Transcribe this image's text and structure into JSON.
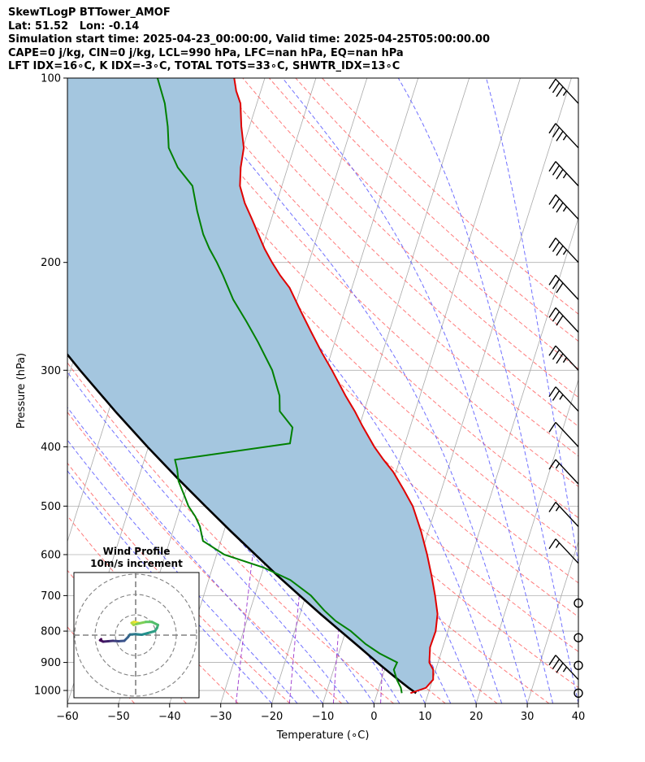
{
  "header": {
    "line1": "SkewTLogP BTTower_AMOF",
    "line2": "Lat: 51.52   Lon: -0.14",
    "line3": "Simulation start time: 2025-04-23_00:00:00, Valid time: 2025-04-25T05:00:00.00",
    "line4": "CAPE=0 j/kg, CIN=0 j/kg, LCL=990 hPa, LFC=nan hPa, EQ=nan hPa",
    "line5": "LFT IDX=16∘C, K IDX=-3∘C, TOTAL TOTS=33∘C, SHWTR_IDX=13∘C"
  },
  "chart_data": [
    {
      "type": "line",
      "subtype": "skew-t log-p",
      "xlabel": "Temperature (∘C)",
      "ylabel": "Pressure (hPa)",
      "xlim": [
        -60,
        40
      ],
      "ylim": [
        1050,
        100
      ],
      "y_scale": "log",
      "grid": true,
      "x_ticks": [
        -60,
        -50,
        -40,
        -30,
        -20,
        -10,
        0,
        10,
        20,
        30,
        40
      ],
      "y_ticks": [
        100,
        200,
        300,
        400,
        500,
        600,
        700,
        800,
        900,
        1000
      ],
      "colors": {
        "temperature": "#e00000",
        "dewpoint": "#008000",
        "parcel": "#000000",
        "cape_cin_fill": "#a4c6df",
        "dry_adiabats": "#ff5a5a",
        "moist_adiabats": "#4c4cff",
        "mixing_ratio": "#9932cc",
        "isotherms": "#a9a9a9"
      },
      "series": [
        {
          "key": "temperature",
          "points": [
            [
              1010,
              6.5
            ],
            [
              990,
              9.2
            ],
            [
              960,
              10.1
            ],
            [
              925,
              9.5
            ],
            [
              900,
              8.3
            ],
            [
              850,
              7.5
            ],
            [
              800,
              7.6
            ],
            [
              750,
              6.9
            ],
            [
              700,
              5.3
            ],
            [
              650,
              3.4
            ],
            [
              600,
              1.2
            ],
            [
              550,
              -1.4
            ],
            [
              500,
              -4.6
            ],
            [
              470,
              -7.4
            ],
            [
              440,
              -10.5
            ],
            [
              420,
              -13.2
            ],
            [
              400,
              -15.8
            ],
            [
              370,
              -19.4
            ],
            [
              350,
              -21.8
            ],
            [
              330,
              -24.6
            ],
            [
              300,
              -28.8
            ],
            [
              280,
              -32.0
            ],
            [
              260,
              -35.2
            ],
            [
              240,
              -38.6
            ],
            [
              220,
              -42.2
            ],
            [
              210,
              -44.8
            ],
            [
              200,
              -47.2
            ],
            [
              190,
              -49.5
            ],
            [
              180,
              -51.6
            ],
            [
              170,
              -53.8
            ],
            [
              160,
              -56.2
            ],
            [
              150,
              -58.2
            ],
            [
              140,
              -59.2
            ],
            [
              130,
              -59.8
            ],
            [
              120,
              -61.6
            ],
            [
              110,
              -63.2
            ],
            [
              105,
              -64.8
            ],
            [
              100,
              -66.0
            ]
          ]
        },
        {
          "key": "dewpoint",
          "points": [
            [
              1010,
              4.8
            ],
            [
              990,
              4.3
            ],
            [
              960,
              3.0
            ],
            [
              925,
              1.8
            ],
            [
              900,
              2.0
            ],
            [
              870,
              -2.0
            ],
            [
              840,
              -5.3
            ],
            [
              800,
              -9.0
            ],
            [
              770,
              -12.6
            ],
            [
              740,
              -15.5
            ],
            [
              700,
              -19.0
            ],
            [
              660,
              -24.0
            ],
            [
              630,
              -30.0
            ],
            [
              600,
              -38.5
            ],
            [
              570,
              -43.5
            ],
            [
              540,
              -45.0
            ],
            [
              520,
              -46.5
            ],
            [
              500,
              -48.5
            ],
            [
              480,
              -50.0
            ],
            [
              455,
              -52.0
            ],
            [
              435,
              -53.0
            ],
            [
              420,
              -54.0
            ],
            [
              395,
              -32.5
            ],
            [
              372,
              -33.0
            ],
            [
              350,
              -36.5
            ],
            [
              330,
              -37.5
            ],
            [
              300,
              -40.5
            ],
            [
              270,
              -45.0
            ],
            [
              250,
              -48.5
            ],
            [
              230,
              -52.5
            ],
            [
              210,
              -56.0
            ],
            [
              200,
              -58.0
            ],
            [
              190,
              -60.3
            ],
            [
              180,
              -62.4
            ],
            [
              165,
              -65.0
            ],
            [
              150,
              -67.5
            ],
            [
              140,
              -71.5
            ],
            [
              130,
              -74.5
            ],
            [
              120,
              -76.0
            ],
            [
              110,
              -78.0
            ],
            [
              100,
              -81.0
            ]
          ]
        },
        {
          "key": "parcel",
          "points": [
            [
              1010,
              7.6
            ],
            [
              1000,
              6.7
            ],
            [
              990,
              5.8
            ],
            [
              950,
              2.4
            ],
            [
              900,
              -1.9
            ],
            [
              850,
              -6.3
            ],
            [
              800,
              -11.0
            ],
            [
              750,
              -16.0
            ],
            [
              700,
              -21.2
            ],
            [
              650,
              -26.7
            ],
            [
              600,
              -32.4
            ],
            [
              550,
              -38.6
            ],
            [
              500,
              -45.2
            ],
            [
              450,
              -52.4
            ],
            [
              400,
              -60.2
            ],
            [
              350,
              -68.7
            ],
            [
              300,
              -78.1
            ],
            [
              250,
              -88.8
            ],
            [
              200,
              -101.3
            ],
            [
              150,
              -116.5
            ],
            [
              120,
              -127.6
            ],
            [
              100,
              -136.7
            ]
          ]
        }
      ],
      "wind_barbs": [
        {
          "p": 110,
          "speed_kt": 25
        },
        {
          "p": 130,
          "speed_kt": 25
        },
        {
          "p": 150,
          "speed_kt": 25
        },
        {
          "p": 170,
          "speed_kt": 25
        },
        {
          "p": 200,
          "speed_kt": 25
        },
        {
          "p": 230,
          "speed_kt": 30
        },
        {
          "p": 260,
          "speed_kt": 30
        },
        {
          "p": 300,
          "speed_kt": 25
        },
        {
          "p": 350,
          "speed_kt": 15
        },
        {
          "p": 400,
          "speed_kt": 10
        },
        {
          "p": 460,
          "speed_kt": 5
        },
        {
          "p": 540,
          "speed_kt": 5
        },
        {
          "p": 620,
          "speed_kt": 5
        },
        {
          "p": 720,
          "speed_kt": 0
        },
        {
          "p": 820,
          "speed_kt": 0
        },
        {
          "p": 910,
          "speed_kt": 0
        },
        {
          "p": 960,
          "speed_kt": 25
        },
        {
          "p": 1010,
          "speed_kt": 0
        }
      ]
    },
    {
      "type": "line",
      "subtype": "hodograph",
      "title": "Wind Profile",
      "subtitle": "10m/s increment",
      "ring_increment_ms": 10,
      "rings": 3,
      "points": [
        [
          1.5,
          6.0
        ],
        [
          -1,
          6.5
        ],
        [
          -2,
          6.0
        ],
        [
          -1,
          5.0
        ],
        [
          0.5,
          5.5
        ],
        [
          5,
          6.5
        ],
        [
          8,
          6.5
        ],
        [
          11,
          5.0
        ],
        [
          10.5,
          3.5
        ],
        [
          9.5,
          2.0
        ],
        [
          6,
          1.0
        ],
        [
          3,
          0.2
        ],
        [
          0,
          0.5
        ],
        [
          -2.8,
          0.3
        ],
        [
          -3.8,
          -1.0
        ],
        [
          -5.6,
          -2.8
        ],
        [
          -8.5,
          -3.0
        ],
        [
          -11.2,
          -2.8
        ],
        [
          -13.5,
          -3.0
        ],
        [
          -16,
          -3.2
        ],
        [
          -17.5,
          -2.5
        ],
        [
          -17.0,
          -2.0
        ]
      ]
    }
  ]
}
